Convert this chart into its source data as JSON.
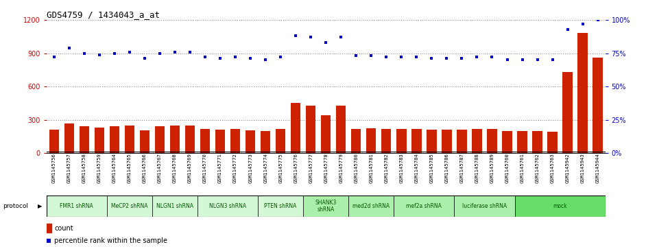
{
  "title": "GDS4759 / 1434043_a_at",
  "samples": [
    "GSM1145756",
    "GSM1145757",
    "GSM1145758",
    "GSM1145759",
    "GSM1145764",
    "GSM1145765",
    "GSM1145766",
    "GSM1145767",
    "GSM1145768",
    "GSM1145769",
    "GSM1145770",
    "GSM1145771",
    "GSM1145772",
    "GSM1145773",
    "GSM1145774",
    "GSM1145775",
    "GSM1145776",
    "GSM1145777",
    "GSM1145778",
    "GSM1145779",
    "GSM1145780",
    "GSM1145781",
    "GSM1145782",
    "GSM1145783",
    "GSM1145784",
    "GSM1145785",
    "GSM1145786",
    "GSM1145787",
    "GSM1145788",
    "GSM1145789",
    "GSM1145760",
    "GSM1145761",
    "GSM1145762",
    "GSM1145763",
    "GSM1145942",
    "GSM1145943",
    "GSM1145944"
  ],
  "bar_values": [
    210,
    265,
    240,
    230,
    240,
    250,
    205,
    240,
    250,
    250,
    215,
    210,
    215,
    205,
    200,
    215,
    455,
    430,
    340,
    430,
    220,
    225,
    215,
    215,
    215,
    210,
    210,
    210,
    215,
    220,
    200,
    200,
    200,
    195,
    730,
    1080,
    860
  ],
  "blue_values": [
    72,
    79,
    75,
    74,
    75,
    76,
    71,
    75,
    76,
    76,
    72,
    71,
    72,
    71,
    70,
    72,
    88,
    87,
    83,
    87,
    73,
    73,
    72,
    72,
    72,
    71,
    71,
    71,
    72,
    72,
    70,
    70,
    70,
    70,
    93,
    97,
    100
  ],
  "protocols": [
    {
      "label": "FMR1 shRNA",
      "start": 0,
      "end": 4,
      "color": "#d4f7d4"
    },
    {
      "label": "MeCP2 shRNA",
      "start": 4,
      "end": 7,
      "color": "#d4f7d4"
    },
    {
      "label": "NLGN1 shRNA",
      "start": 7,
      "end": 10,
      "color": "#d4f7d4"
    },
    {
      "label": "NLGN3 shRNA",
      "start": 10,
      "end": 14,
      "color": "#d4f7d4"
    },
    {
      "label": "PTEN shRNA",
      "start": 14,
      "end": 17,
      "color": "#d4f7d4"
    },
    {
      "label": "SHANK3\nshRNA",
      "start": 17,
      "end": 20,
      "color": "#aaf0aa"
    },
    {
      "label": "med2d shRNA",
      "start": 20,
      "end": 23,
      "color": "#aaf0aa"
    },
    {
      "label": "mef2a shRNA",
      "start": 23,
      "end": 27,
      "color": "#aaf0aa"
    },
    {
      "label": "luciferase shRNA",
      "start": 27,
      "end": 31,
      "color": "#aaf0aa"
    },
    {
      "label": "mock",
      "start": 31,
      "end": 37,
      "color": "#66dd66"
    }
  ],
  "ylim_left": [
    0,
    1200
  ],
  "ylim_right": [
    0,
    100
  ],
  "yticks_left": [
    0,
    300,
    600,
    900,
    1200
  ],
  "yticks_right": [
    0,
    25,
    50,
    75,
    100
  ],
  "bar_color": "#cc2200",
  "dot_color": "#0000cc",
  "bg_color": "#ffffff",
  "grid_color": "#000000",
  "left_tick_color": "#cc0000",
  "right_tick_color": "#0000cc"
}
